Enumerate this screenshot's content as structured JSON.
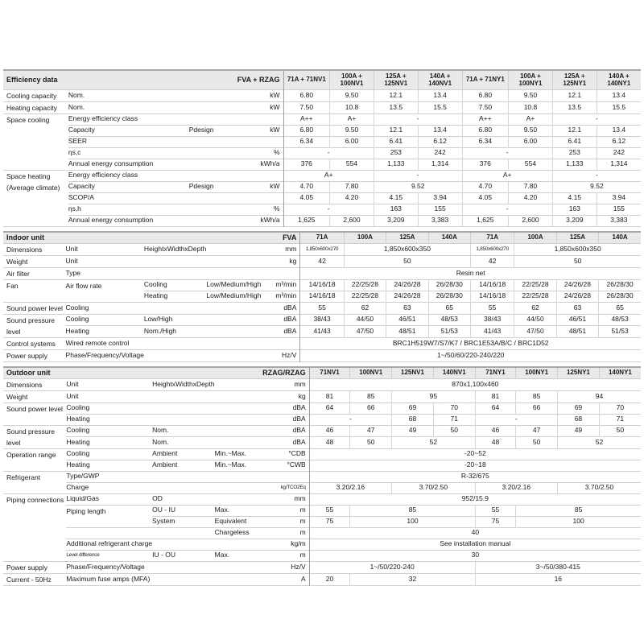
{
  "meta": {
    "colors": {
      "section_header_bg": "#e9e9e9",
      "section_top_border": "#a8a8a8",
      "row_line": "#cfcfcf",
      "data_divider": "#9e9e9e",
      "text": "#1a1a1a"
    }
  },
  "sections": [
    {
      "title": "Efficiency data",
      "model": "FVA + RZAG",
      "tall_header": true,
      "columns": [
        "71A + 71NV1",
        "100A +|100NV1",
        "125A +|125NV1",
        "140A +|140NV1",
        "71A + 71NY1",
        "100A +|100NY1",
        "125A +|125NY1",
        "140A +|140NY1"
      ],
      "rows": [
        {
          "cat": {
            "t": "Cooling capacity"
          },
          "labels": [
            "Nom."
          ],
          "unit": "kW",
          "cells": [
            "6.80",
            "9.50",
            "12.1",
            "13.4",
            "6.80",
            "9.50",
            "12.1",
            "13.4"
          ]
        },
        {
          "cat": {
            "t": "Heating capacity"
          },
          "labels": [
            "Nom."
          ],
          "unit": "kW",
          "cells": [
            "7.50",
            "10.8",
            "13.5",
            "15.5",
            "7.50",
            "10.8",
            "13.5",
            "15.5"
          ]
        },
        {
          "cat": {
            "t": "Space cooling",
            "rs": 5
          },
          "labels": [
            "Energy efficiency class"
          ],
          "unit": "",
          "cells": [
            "A++",
            "A+",
            {
              "t": "-",
              "s": 2
            },
            "A++",
            "A+",
            {
              "t": "-",
              "s": 2
            }
          ]
        },
        {
          "labels": [
            "Capacity",
            "",
            "Pdesign"
          ],
          "unit": "kW",
          "cells": [
            "6.80",
            "9.50",
            "12.1",
            "13.4",
            "6.80",
            "9.50",
            "12.1",
            "13.4"
          ]
        },
        {
          "labels": [
            "SEER"
          ],
          "unit": "",
          "cells": [
            "6.34",
            "6.00",
            "6.41",
            "6.12",
            "6.34",
            "6.00",
            "6.41",
            "6.12"
          ]
        },
        {
          "labels": [
            "ηs,c"
          ],
          "unit": "%",
          "cells": [
            {
              "t": "-",
              "s": 2
            },
            "253",
            "242",
            {
              "t": "-",
              "s": 2
            },
            "253",
            "242"
          ]
        },
        {
          "labels": [
            "Annual energy consumption"
          ],
          "unit": "kWh/a",
          "cells": [
            "376",
            "554",
            "1,133",
            "1,314",
            "376",
            "554",
            "1,133",
            "1,314"
          ]
        },
        {
          "cat": {
            "t": "Space heating (Average climate)",
            "rs": 5
          },
          "labels": [
            "Energy efficiency class"
          ],
          "unit": "",
          "cells": [
            {
              "t": "A+",
              "s": 2
            },
            {
              "t": "-",
              "s": 2
            },
            {
              "t": "A+",
              "s": 2
            },
            {
              "t": "-",
              "s": 2
            }
          ]
        },
        {
          "labels": [
            "Capacity",
            "",
            "Pdesign"
          ],
          "unit": "kW",
          "cells": [
            "4.70",
            "7.80",
            {
              "t": "9.52",
              "s": 2
            },
            "4.70",
            "7.80",
            {
              "t": "9.52",
              "s": 2
            }
          ]
        },
        {
          "labels": [
            "SCOP/A"
          ],
          "unit": "",
          "cells": [
            "4.05",
            "4.20",
            "4.15",
            "3.94",
            "4.05",
            "4.20",
            "4.15",
            "3.94"
          ]
        },
        {
          "labels": [
            "ηs,h"
          ],
          "unit": "%",
          "cells": [
            {
              "t": "-",
              "s": 2
            },
            "163",
            "155",
            {
              "t": "-",
              "s": 2
            },
            "163",
            "155"
          ]
        },
        {
          "labels": [
            "Annual energy consumption"
          ],
          "unit": "kWh/a",
          "cells": [
            "1,625",
            "2,600",
            "3,209",
            "3,383",
            "1,625",
            "2,600",
            "3,209",
            "3,383"
          ]
        }
      ]
    },
    {
      "title": "Indoor unit",
      "model": "FVA",
      "tall_header": false,
      "columns": [
        "71A",
        "100A",
        "125A",
        "140A",
        "71A",
        "100A",
        "125A",
        "140A"
      ],
      "rows": [
        {
          "cat": {
            "t": "Dimensions"
          },
          "labels": [
            "Unit",
            "HeightxWidthxDepth"
          ],
          "unit": "mm",
          "cells": [
            {
              "t": "1,850x600x270",
              "small": true
            },
            {
              "t": "1,850x600x350",
              "s": 3
            },
            {
              "t": "1,850x600x270",
              "small": true
            },
            {
              "t": "1,850x600x350",
              "s": 3
            }
          ]
        },
        {
          "cat": {
            "t": "Weight"
          },
          "labels": [
            "Unit"
          ],
          "unit": "kg",
          "cells": [
            "42",
            {
              "t": "50",
              "s": 3
            },
            "42",
            {
              "t": "50",
              "s": 3
            }
          ]
        },
        {
          "cat": {
            "t": "Air filter"
          },
          "labels": [
            "Type"
          ],
          "unit": "",
          "cells": [
            {
              "t": "Resin net",
              "s": 8
            }
          ]
        },
        {
          "cat": {
            "t": "Fan",
            "rs": 2
          },
          "labels": [
            {
              "t": "Air flow rate",
              "rs": 2
            },
            "Cooling",
            "Low/Medium/High"
          ],
          "unit": "m³/min",
          "cells": [
            "14/16/18",
            "22/25/28",
            "24/26/28",
            "26/28/30",
            "14/16/18",
            "22/25/28",
            "24/26/28",
            "26/28/30"
          ]
        },
        {
          "labels": [
            null,
            "Heating",
            "Low/Medium/High"
          ],
          "unit": "m³/min",
          "cells": [
            "14/16/18",
            "22/25/28",
            "24/26/28",
            "26/28/30",
            "14/16/18",
            "22/25/28",
            "24/26/28",
            "26/28/30"
          ]
        },
        {
          "cat": {
            "t": "Sound power level"
          },
          "labels": [
            "Cooling"
          ],
          "unit": "dBA",
          "cells": [
            "55",
            "62",
            "63",
            "65",
            "55",
            "62",
            "63",
            "65"
          ]
        },
        {
          "cat": {
            "t": "Sound pressure level",
            "rs": 2
          },
          "labels": [
            "Cooling",
            "Low/High"
          ],
          "unit": "dBA",
          "cells": [
            "38/43",
            "44/50",
            "46/51",
            "48/53",
            "38/43",
            "44/50",
            "46/51",
            "48/53"
          ]
        },
        {
          "labels": [
            "Heating",
            "Nom./High"
          ],
          "unit": "dBA",
          "cells": [
            "41/43",
            "47/50",
            "48/51",
            "51/53",
            "41/43",
            "47/50",
            "48/51",
            "51/53"
          ]
        },
        {
          "cat": {
            "t": "Control systems"
          },
          "labels": [
            "Wired remote control"
          ],
          "unit": "",
          "cells": [
            {
              "t": "BRC1H519W7/S7/K7 / BRC1E53A/B/C / BRC1D52",
              "s": 8
            }
          ]
        },
        {
          "cat": {
            "t": "Power supply"
          },
          "labels": [
            "Phase/Frequency/Voltage"
          ],
          "unit": "Hz/V",
          "cells": [
            {
              "t": "1~/50/60/220-240/220",
              "s": 8
            }
          ]
        }
      ]
    },
    {
      "title": "Outdoor unit",
      "model": "RZAG/RZAG",
      "tall_header": false,
      "columns": [
        "71NV1",
        "100NV1",
        "125NV1",
        "140NV1",
        "71NY1",
        "100NY1",
        "125NY1",
        "140NY1"
      ],
      "rows": [
        {
          "cat": {
            "t": "Dimensions"
          },
          "labels": [
            "Unit",
            "HeightxWidthxDepth"
          ],
          "unit": "mm",
          "cells": [
            {
              "t": "870x1,100x460",
              "s": 8
            }
          ]
        },
        {
          "cat": {
            "t": "Weight"
          },
          "labels": [
            "Unit"
          ],
          "unit": "kg",
          "cells": [
            "81",
            "85",
            {
              "t": "95",
              "s": 2
            },
            "81",
            "85",
            {
              "t": "94",
              "s": 2
            }
          ]
        },
        {
          "cat": {
            "t": "Sound power level",
            "rs": 2
          },
          "labels": [
            "Cooling"
          ],
          "unit": "dBA",
          "cells": [
            "64",
            "66",
            "69",
            "70",
            "64",
            "66",
            "69",
            "70"
          ]
        },
        {
          "labels": [
            "Heating"
          ],
          "unit": "dBA",
          "cells": [
            {
              "t": "-",
              "s": 2
            },
            "68",
            "71",
            {
              "t": "-",
              "s": 2
            },
            "68",
            "71"
          ]
        },
        {
          "cat": {
            "t": "Sound pressure level",
            "rs": 2
          },
          "labels": [
            "Cooling",
            "Nom."
          ],
          "unit": "dBA",
          "cells": [
            "46",
            "47",
            "49",
            "50",
            "46",
            "47",
            "49",
            "50"
          ]
        },
        {
          "labels": [
            "Heating",
            "Nom."
          ],
          "unit": "dBA",
          "cells": [
            "48",
            "50",
            {
              "t": "52",
              "s": 2
            },
            "48",
            "50",
            {
              "t": "52",
              "s": 2
            }
          ]
        },
        {
          "cat": {
            "t": "Operation range",
            "rs": 2
          },
          "labels": [
            "Cooling",
            "Ambient",
            "Min.~Max."
          ],
          "unit": "°CDB",
          "cells": [
            {
              "t": "-20~52",
              "s": 8
            }
          ]
        },
        {
          "labels": [
            "Heating",
            "Ambient",
            "Min.~Max."
          ],
          "unit": "°CWB",
          "cells": [
            {
              "t": "-20~18",
              "s": 8
            }
          ]
        },
        {
          "cat": {
            "t": "Refrigerant",
            "rs": 2
          },
          "labels": [
            "Type/GWP"
          ],
          "unit": "",
          "cells": [
            {
              "t": "R-32/675",
              "s": 8
            }
          ]
        },
        {
          "labels": [
            "Charge"
          ],
          "unit": "kg/TCO2Eq",
          "unit_small": true,
          "cells": [
            {
              "t": "3.20/2.16",
              "s": 2
            },
            {
              "t": "3.70/2.50",
              "s": 2
            },
            {
              "t": "3.20/2.16",
              "s": 2
            },
            {
              "t": "3.70/2.50",
              "s": 2
            }
          ]
        },
        {
          "cat": {
            "t": "Piping connections",
            "rs": 6
          },
          "labels": [
            "Liquid/Gas",
            "OD"
          ],
          "unit": "mm",
          "cells": [
            {
              "t": "952/15.9",
              "s": 8
            }
          ]
        },
        {
          "labels": [
            {
              "t": "Piping length",
              "rs": 2
            },
            "OU - IU",
            "Max."
          ],
          "unit": "m",
          "cells": [
            "55",
            {
              "t": "85",
              "s": 3
            },
            "55",
            {
              "t": "85",
              "s": 3
            }
          ]
        },
        {
          "labels": [
            null,
            "System",
            "Equivalent"
          ],
          "unit": "m",
          "cells": [
            "75",
            {
              "t": "100",
              "s": 3
            },
            "75",
            {
              "t": "100",
              "s": 3
            }
          ]
        },
        {
          "labels": [
            "",
            "",
            "Chargeless"
          ],
          "unit": "m",
          "cells": [
            {
              "t": "40",
              "s": 8
            }
          ]
        },
        {
          "labels": [
            "Additional refrigerant charge"
          ],
          "unit": "kg/m",
          "cells": [
            {
              "t": "See installation manual",
              "s": 8
            }
          ]
        },
        {
          "labels": [
            {
              "t": "Level difference",
              "small": true
            },
            "IU - OU",
            "Max."
          ],
          "unit": "m",
          "cells": [
            {
              "t": "30",
              "s": 8
            }
          ]
        },
        {
          "cat": {
            "t": "Power supply"
          },
          "labels": [
            "Phase/Frequency/Voltage"
          ],
          "unit": "Hz/V",
          "cells": [
            {
              "t": "1~/50/220-240",
              "s": 4
            },
            {
              "t": "3~/50/380-415",
              "s": 4
            }
          ]
        },
        {
          "cat": {
            "t": "Current - 50Hz"
          },
          "labels": [
            "Maximum fuse amps (MFA)"
          ],
          "unit": "A",
          "cells": [
            "20",
            {
              "t": "32",
              "s": 3
            },
            {
              "t": "16",
              "s": 4
            }
          ]
        }
      ]
    }
  ]
}
